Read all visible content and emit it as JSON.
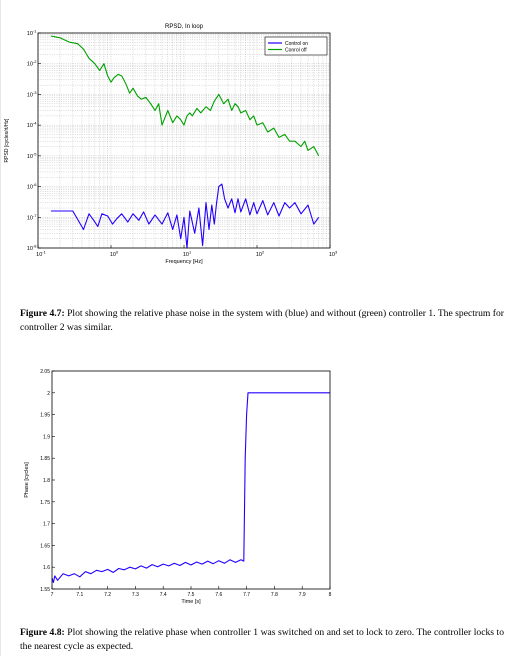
{
  "figures": [
    {
      "caption": {
        "label": "Figure 4.7:",
        "text": "Plot showing the relative phase noise in the system with (blue) and without (green) controller 1. The spectrum for controller 2 was similar."
      }
    },
    {
      "caption": {
        "label": "Figure 4.8:",
        "text": "Plot showing the relative phase when controller 1 was switched on and set to lock to zero. The controller locks to the nearest cycle as expected."
      }
    }
  ],
  "chart_data": [
    {
      "type": "line",
      "title": "RPSD, In loop",
      "xlabel": "Frequency [Hz]",
      "ylabel": "RPSD [cycles/rt/Hz]",
      "xscale": "log",
      "yscale": "log",
      "xlim": [
        0.1,
        1000
      ],
      "ylim": [
        1e-08,
        0.1
      ],
      "x_tick_values": [
        0.1,
        1,
        10,
        100,
        1000
      ],
      "x_tick_labels": [
        "10-1",
        "100",
        "101",
        "102",
        "103"
      ],
      "y_tick_values": [
        1e-08,
        1e-07,
        1e-06,
        1e-05,
        0.0001,
        0.001,
        0.01,
        0.1
      ],
      "y_tick_labels": [
        "10-8",
        "10-7",
        "10-6",
        "10-5",
        "10-4",
        "10-3",
        "10-2",
        "10-1"
      ],
      "grid": true,
      "legend_position": "top-right",
      "series": [
        {
          "name": "Control on",
          "color": "#2200ff",
          "x": [
            0.15,
            0.3,
            0.42,
            0.5,
            0.58,
            0.66,
            0.75,
            0.9,
            1.05,
            1.2,
            1.4,
            1.7,
            2.0,
            2.4,
            2.8,
            3.3,
            4,
            5,
            6,
            7,
            8,
            9,
            10,
            11,
            12,
            14,
            16,
            18,
            20,
            22,
            24,
            26,
            28,
            30,
            33,
            36,
            40,
            45,
            50,
            55,
            60,
            70,
            80,
            90,
            100,
            120,
            140,
            170,
            200,
            240,
            280,
            330,
            400,
            500,
            600,
            700
          ],
          "y": [
            1.6e-07,
            1.6e-07,
            4e-08,
            1.3e-07,
            8e-08,
            5e-08,
            1.3e-07,
            1.1e-07,
            6e-08,
            9e-08,
            1.3e-07,
            7e-08,
            1.3e-07,
            8e-08,
            1.5e-07,
            6e-08,
            1.2e-07,
            6e-08,
            1.4e-07,
            4e-08,
            1.2e-07,
            2e-08,
            1e-07,
            1e-08,
            1.6e-07,
            3e-08,
            2e-07,
            1.2e-08,
            3e-07,
            4e-08,
            2.5e-07,
            6e-08,
            3e-07,
            1e-06,
            1.2e-06,
            4e-07,
            2e-07,
            4e-07,
            1.4e-07,
            4e-07,
            1.5e-07,
            4e-07,
            1.2e-07,
            3e-07,
            1.3e-07,
            3.5e-07,
            1.2e-07,
            3e-07,
            1.1e-07,
            3e-07,
            2e-07,
            3e-07,
            1.3e-07,
            2.5e-07,
            6e-08,
            1e-07
          ]
        },
        {
          "name": "Conrol off",
          "color": "#00a000",
          "x": [
            0.15,
            0.2,
            0.27,
            0.35,
            0.42,
            0.5,
            0.6,
            0.7,
            0.8,
            0.9,
            1.0,
            1.1,
            1.25,
            1.4,
            1.6,
            1.8,
            2.0,
            2.3,
            2.6,
            3.0,
            3.5,
            4,
            4.5,
            5,
            6,
            7,
            8,
            9,
            10,
            11,
            12,
            13,
            15,
            17,
            20,
            23,
            26,
            30,
            35,
            40,
            45,
            50,
            55,
            60,
            70,
            80,
            90,
            100,
            120,
            140,
            170,
            200,
            240,
            280,
            330,
            400,
            450,
            500,
            600,
            700
          ],
          "y": [
            0.08,
            0.07,
            0.05,
            0.045,
            0.03,
            0.015,
            0.01,
            0.006,
            0.01,
            0.004,
            0.0025,
            0.0035,
            0.0045,
            0.004,
            0.0022,
            0.0011,
            0.0016,
            0.0009,
            0.0007,
            0.0008,
            0.0005,
            0.0003,
            0.0005,
            0.0001,
            0.0003,
            0.00012,
            0.0002,
            0.00015,
            0.0001,
            0.0002,
            0.00025,
            0.0002,
            0.00035,
            0.00025,
            0.0004,
            0.0003,
            0.0006,
            0.001,
            0.0005,
            0.0007,
            0.0003,
            0.0005,
            0.0004,
            0.00025,
            0.0003,
            0.00015,
            0.0002,
            0.0001,
            0.00012,
            6e-05,
            8e-05,
            4e-05,
            5e-05,
            3e-05,
            3e-05,
            2e-05,
            3e-05,
            1.5e-05,
            2e-05,
            1e-05
          ]
        }
      ]
    },
    {
      "type": "line",
      "title": "",
      "xlabel": "Time [s]",
      "ylabel": "Phase [cycles]",
      "xlim": [
        7,
        8
      ],
      "ylim": [
        1.55,
        2.05
      ],
      "x_tick_values": [
        7,
        7.1,
        7.2,
        7.3,
        7.4,
        7.5,
        7.6,
        7.7,
        7.8,
        7.9,
        8
      ],
      "x_tick_labels": [
        "7",
        "7.1",
        "7.2",
        "7.3",
        "7.4",
        "7.5",
        "7.6",
        "7.7",
        "7.8",
        "7.9",
        "8"
      ],
      "y_tick_values": [
        1.55,
        1.6,
        1.65,
        1.7,
        1.75,
        1.8,
        1.85,
        1.9,
        1.95,
        2,
        2.05
      ],
      "y_tick_labels": [
        "1.55",
        "1.6",
        "1.65",
        "1.7",
        "1.75",
        "1.8",
        "1.85",
        "1.9",
        "1.95",
        "2",
        "2.05"
      ],
      "grid": false,
      "series": [
        {
          "color": "#2200ff",
          "x": [
            7.0,
            7.005,
            7.01,
            7.02,
            7.04,
            7.06,
            7.08,
            7.1,
            7.12,
            7.14,
            7.16,
            7.18,
            7.2,
            7.22,
            7.24,
            7.26,
            7.28,
            7.3,
            7.32,
            7.34,
            7.36,
            7.38,
            7.4,
            7.42,
            7.44,
            7.46,
            7.48,
            7.5,
            7.52,
            7.54,
            7.56,
            7.58,
            7.6,
            7.62,
            7.64,
            7.66,
            7.68,
            7.69,
            7.695,
            7.7,
            7.705,
            7.72,
            7.8,
            7.9,
            8.0
          ],
          "y": [
            1.575,
            1.565,
            1.58,
            1.57,
            1.585,
            1.58,
            1.585,
            1.578,
            1.59,
            1.585,
            1.593,
            1.59,
            1.595,
            1.588,
            1.597,
            1.594,
            1.6,
            1.596,
            1.603,
            1.598,
            1.606,
            1.601,
            1.607,
            1.603,
            1.609,
            1.604,
            1.611,
            1.605,
            1.612,
            1.607,
            1.614,
            1.608,
            1.615,
            1.609,
            1.617,
            1.611,
            1.617,
            1.614,
            1.85,
            1.95,
            2.0,
            2.0,
            2.0,
            2.0,
            2.0
          ]
        }
      ]
    }
  ]
}
